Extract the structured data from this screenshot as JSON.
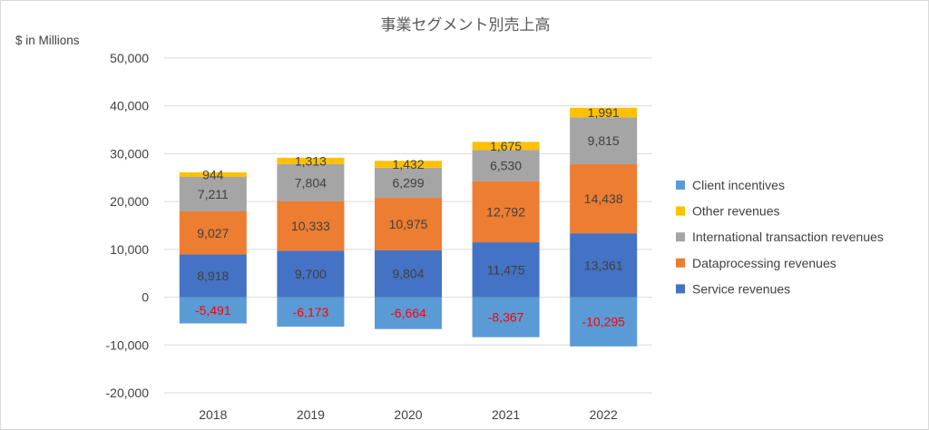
{
  "chart_data": {
    "type": "bar",
    "stacked": true,
    "title": "事業セグメント別売上高",
    "unit_label": "$ in Millions",
    "categories": [
      "2018",
      "2019",
      "2020",
      "2021",
      "2022"
    ],
    "ylim": [
      -20000,
      50000
    ],
    "yticks": [
      -20000,
      -10000,
      0,
      10000,
      20000,
      30000,
      40000,
      50000
    ],
    "ytick_labels": [
      "-20,000",
      "-10,000",
      "0",
      "10,000",
      "20,000",
      "30,000",
      "40,000",
      "50,000"
    ],
    "grid": true,
    "legend_position": "right",
    "series": [
      {
        "name": "Service revenues",
        "color": "#4472C4",
        "label_color": "#404040",
        "values": [
          8918,
          9700,
          9804,
          11475,
          13361
        ],
        "labels": [
          "8,918",
          "9,700",
          "9,804",
          "11,475",
          "13,361"
        ]
      },
      {
        "name": "Dataprocessing revenues",
        "color": "#ED7D31",
        "label_color": "#404040",
        "values": [
          9027,
          10333,
          10975,
          12792,
          14438
        ],
        "labels": [
          "9,027",
          "10,333",
          "10,975",
          "12,792",
          "14,438"
        ]
      },
      {
        "name": "International transaction revenues",
        "color": "#A5A5A5",
        "label_color": "#404040",
        "values": [
          7211,
          7804,
          6299,
          6530,
          9815
        ],
        "labels": [
          "7,211",
          "7,804",
          "6,299",
          "6,530",
          "9,815"
        ]
      },
      {
        "name": "Other revenues",
        "color": "#FFC000",
        "label_color": "#404040",
        "values": [
          944,
          1313,
          1432,
          1675,
          1991
        ],
        "labels": [
          "944",
          "1,313",
          "1,432",
          "1,675",
          "1,991"
        ]
      },
      {
        "name": "Client incentives",
        "color": "#5B9BD5",
        "label_color": "#FF0000",
        "values": [
          -5491,
          -6173,
          -6664,
          -8367,
          -10295
        ],
        "labels": [
          "-5,491",
          "-6,173",
          "-6,664",
          "-8,367",
          "-10,295"
        ]
      }
    ],
    "legend_order": [
      "Client incentives",
      "Other revenues",
      "International transaction revenues",
      "Dataprocessing revenues",
      "Service revenues"
    ],
    "negative_tick_color": "#FF0000",
    "gridline_color": "#d9d9d9"
  }
}
